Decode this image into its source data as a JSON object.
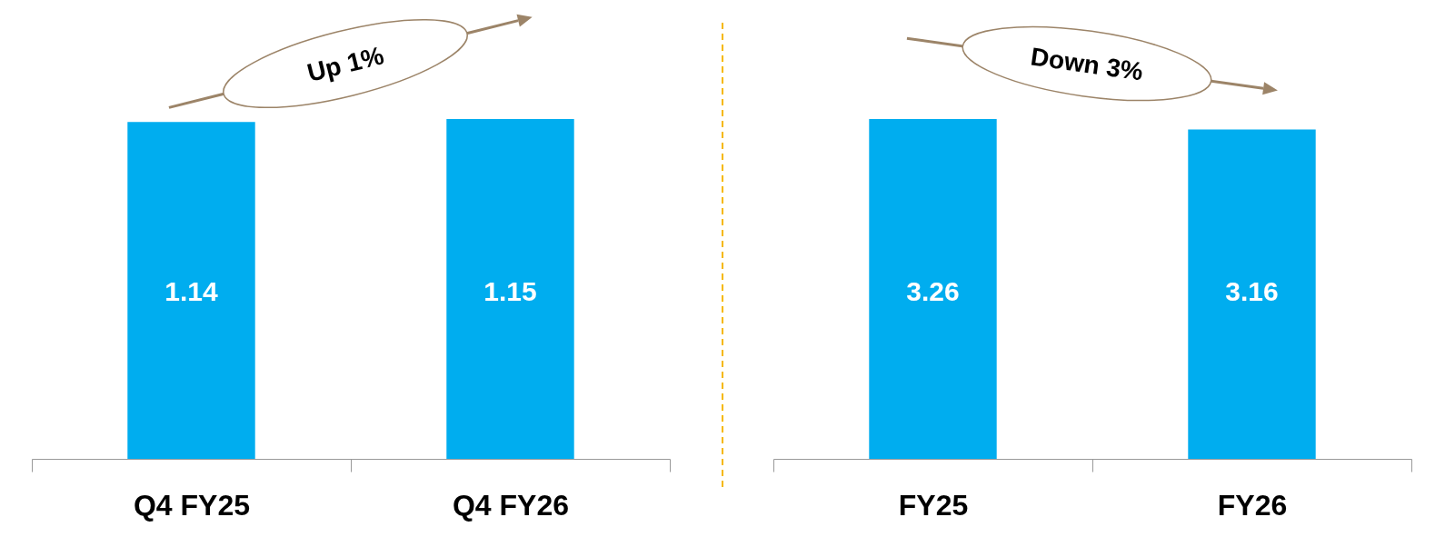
{
  "chart_data": [
    {
      "type": "bar",
      "categories": [
        "Q4 FY25",
        "Q4 FY26"
      ],
      "values": [
        1.14,
        1.15
      ],
      "color": "#00adef",
      "data_labels": true,
      "annotations": [
        "Up 1%"
      ]
    },
    {
      "type": "bar",
      "categories": [
        "FY25",
        "FY26"
      ],
      "values": [
        3.26,
        3.16
      ],
      "color": "#00adef",
      "data_labels": true,
      "annotations": [
        "Down 3%"
      ]
    }
  ]
}
